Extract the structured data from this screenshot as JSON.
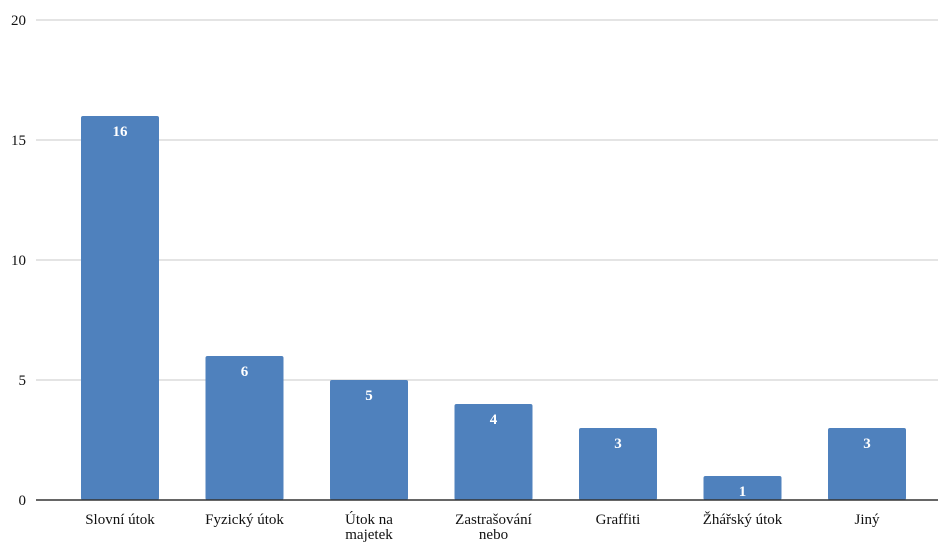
{
  "chart_data": {
    "type": "bar",
    "title": "",
    "xlabel": "",
    "ylabel": "",
    "categories": [
      [
        "Slovní útok"
      ],
      [
        "Fyzický útok"
      ],
      [
        "Útok na",
        "majetek"
      ],
      [
        "Zastrašování",
        "nebo"
      ],
      [
        "Graffiti"
      ],
      [
        "Žhářský útok"
      ],
      [
        "Jiný"
      ]
    ],
    "values": [
      16,
      6,
      5,
      4,
      3,
      1,
      3
    ],
    "data_labels": [
      "16",
      "6",
      "5",
      "4",
      "3",
      "1",
      "3"
    ],
    "ylim": [
      0,
      20
    ],
    "yticks": [
      "0",
      "5",
      "10",
      "15",
      "20"
    ],
    "grid": true,
    "legend": "none",
    "colors": {
      "bar": "#4f81bd",
      "grid": "#c8c8c8",
      "axis": "#333333",
      "text": "#111111",
      "data_label": "#ffffff"
    }
  }
}
